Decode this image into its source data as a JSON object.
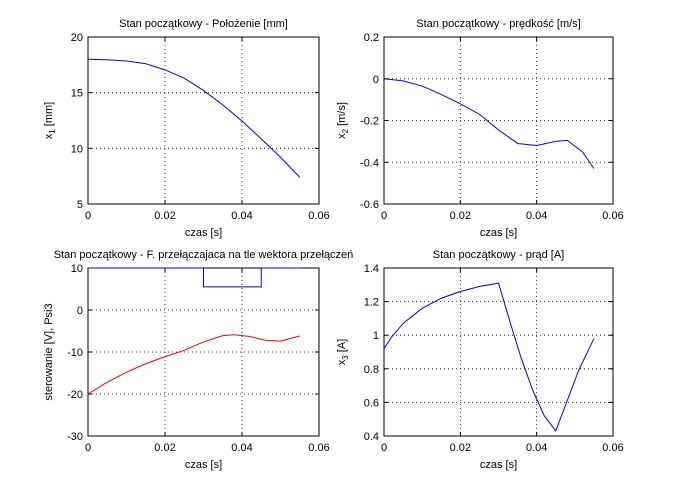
{
  "chart_data": [
    {
      "type": "line",
      "title": "Stan początkowy - Położenie [mm]",
      "xlabel": "czas [s]",
      "ylabel": "x",
      "ylabel_sub": "1",
      "ylabel_suffix": " [mm]",
      "xlim": [
        0,
        0.06
      ],
      "ylim": [
        5,
        20
      ],
      "xticks": [
        0,
        0.02,
        0.04,
        0.06
      ],
      "yticks": [
        5,
        10,
        15,
        20
      ],
      "xtick_labels": [
        "0",
        "0.02",
        "0.04",
        "0.06"
      ],
      "ytick_labels": [
        "5",
        "10",
        "15",
        "20"
      ],
      "grid": true,
      "series": [
        {
          "color": "#0000ff",
          "x": [
            0,
            0.005,
            0.01,
            0.015,
            0.02,
            0.025,
            0.03,
            0.035,
            0.04,
            0.045,
            0.05,
            0.055
          ],
          "y": [
            18.0,
            17.96,
            17.85,
            17.6,
            17.05,
            16.3,
            15.2,
            13.9,
            12.45,
            10.85,
            9.2,
            7.4
          ]
        }
      ]
    },
    {
      "type": "line",
      "title": "Stan początkowy - prędkość [m/s]",
      "xlabel": "czas [s]",
      "ylabel": "x",
      "ylabel_sub": "2",
      "ylabel_suffix": " [m/s]",
      "xlim": [
        0,
        0.06
      ],
      "ylim": [
        -0.6,
        0.2
      ],
      "xticks": [
        0,
        0.02,
        0.04,
        0.06
      ],
      "yticks": [
        -0.6,
        -0.4,
        -0.2,
        0,
        0.2
      ],
      "xtick_labels": [
        "0",
        "0.02",
        "0.04",
        "0.06"
      ],
      "ytick_labels": [
        "-0.6",
        "-0.4",
        "-0.2",
        "0",
        "0.2"
      ],
      "grid": true,
      "series": [
        {
          "color": "#0000ff",
          "x": [
            0,
            0.005,
            0.01,
            0.015,
            0.02,
            0.025,
            0.03,
            0.035,
            0.04,
            0.045,
            0.048,
            0.052,
            0.055
          ],
          "y": [
            0,
            -0.01,
            -0.035,
            -0.075,
            -0.12,
            -0.17,
            -0.245,
            -0.31,
            -0.32,
            -0.3,
            -0.295,
            -0.35,
            -0.43
          ]
        }
      ]
    },
    {
      "type": "line",
      "title": "Stan początkowy - F. przełączajaca na tle wektora przełączeń",
      "xlabel": "czas [s]",
      "ylabel": "sterowanie [V], Psi3",
      "ylabel_sub": "",
      "ylabel_suffix": "",
      "xlim": [
        0,
        0.06
      ],
      "ylim": [
        -30,
        10
      ],
      "xticks": [
        0,
        0.02,
        0.04,
        0.06
      ],
      "yticks": [
        -30,
        -20,
        -10,
        0,
        10
      ],
      "xtick_labels": [
        "0",
        "0.02",
        "0.04",
        "0.06"
      ],
      "ytick_labels": [
        "-30",
        "-20",
        "-10",
        "0",
        "10"
      ],
      "grid": true,
      "series": [
        {
          "color": "#0000ff",
          "x": [
            0,
            0.03,
            0.03,
            0.045,
            0.045,
            0.055
          ],
          "y": [
            10,
            10,
            5.5,
            5.5,
            10,
            10
          ]
        },
        {
          "color": "#ff0000",
          "x": [
            0,
            0.005,
            0.01,
            0.015,
            0.02,
            0.025,
            0.03,
            0.035,
            0.038,
            0.042,
            0.046,
            0.05,
            0.055
          ],
          "y": [
            -20,
            -17.2,
            -14.8,
            -12.8,
            -11.1,
            -9.6,
            -7.6,
            -6.1,
            -5.9,
            -6.3,
            -7.2,
            -7.4,
            -6.2
          ]
        }
      ]
    },
    {
      "type": "line",
      "title": "Stan początkowy - prąd [A]",
      "xlabel": "czas [s]",
      "ylabel": "x",
      "ylabel_sub": "3",
      "ylabel_suffix": " [A]",
      "xlim": [
        0,
        0.06
      ],
      "ylim": [
        0.4,
        1.4
      ],
      "xticks": [
        0,
        0.02,
        0.04,
        0.06
      ],
      "yticks": [
        0.4,
        0.6,
        0.8,
        1,
        1.2,
        1.4
      ],
      "xtick_labels": [
        "0",
        "0.02",
        "0.04",
        "0.06"
      ],
      "ytick_labels": [
        "0.4",
        "0.6",
        "0.8",
        "1",
        "1.2",
        "1.4"
      ],
      "grid": true,
      "series": [
        {
          "color": "#0000ff",
          "x": [
            0,
            0.002,
            0.005,
            0.01,
            0.015,
            0.02,
            0.025,
            0.03,
            0.033,
            0.036,
            0.039,
            0.042,
            0.045,
            0.048,
            0.051,
            0.055
          ],
          "y": [
            0.92,
            0.99,
            1.07,
            1.16,
            1.22,
            1.26,
            1.29,
            1.31,
            1.08,
            0.86,
            0.67,
            0.52,
            0.43,
            0.61,
            0.79,
            0.98
          ]
        }
      ]
    }
  ]
}
